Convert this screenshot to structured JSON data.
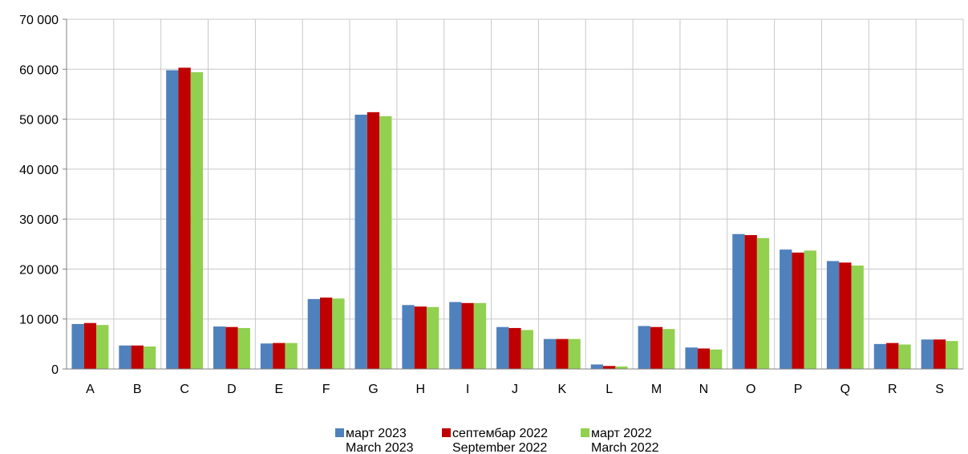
{
  "chart_data": {
    "type": "bar",
    "categories": [
      "A",
      "B",
      "C",
      "D",
      "E",
      "F",
      "G",
      "H",
      "I",
      "J",
      "K",
      "L",
      "M",
      "N",
      "O",
      "P",
      "Q",
      "R",
      "S"
    ],
    "series": [
      {
        "name": "март 2023",
        "name_en": "March 2023",
        "color": "#4F81BD",
        "values": [
          9000,
          4700,
          59800,
          8500,
          5100,
          14000,
          50900,
          12800,
          13400,
          8400,
          6000,
          900,
          8600,
          4300,
          27000,
          23900,
          21600,
          5000,
          5900
        ]
      },
      {
        "name": "септембар 2022",
        "name_en": "September 2022",
        "color": "#C00000",
        "values": [
          9200,
          4700,
          60300,
          8400,
          5200,
          14300,
          51400,
          12500,
          13200,
          8200,
          6000,
          600,
          8400,
          4100,
          26800,
          23300,
          21300,
          5200,
          5900
        ]
      },
      {
        "name": "март 2022",
        "name_en": "March 2022",
        "color": "#92D050",
        "values": [
          8800,
          4500,
          59400,
          8200,
          5200,
          14100,
          50600,
          12400,
          13200,
          7800,
          6000,
          500,
          8000,
          3900,
          26200,
          23700,
          20700,
          4900,
          5600
        ]
      }
    ],
    "ylim": [
      0,
      70000
    ],
    "yticks": [
      "0",
      "10 000",
      "20 000",
      "30 000",
      "40 000",
      "50 000",
      "60 000",
      "70 000"
    ],
    "ytick_values": [
      0,
      10000,
      20000,
      30000,
      40000,
      50000,
      60000,
      70000
    ],
    "grid": true,
    "legend_position": "bottom-center",
    "title": "",
    "xlabel": "",
    "ylabel": ""
  }
}
